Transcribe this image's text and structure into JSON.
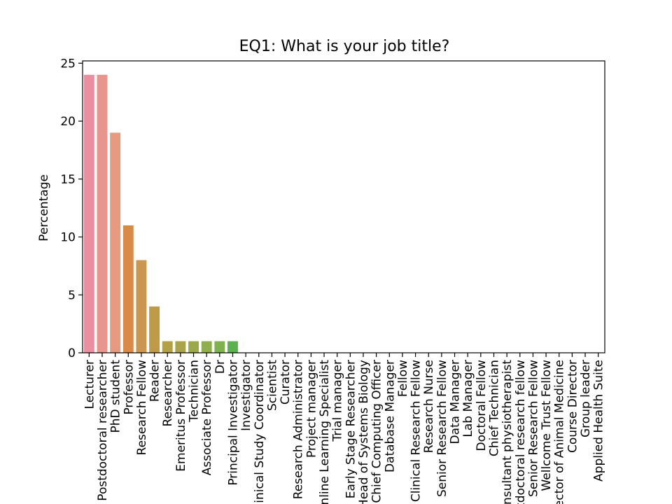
{
  "chart_data": {
    "type": "bar",
    "title": "EQ1: What is your job title?",
    "xlabel": "",
    "ylabel": "Percentage",
    "ylim": [
      0,
      25.2
    ],
    "yticks": [
      0,
      5,
      10,
      15,
      20,
      25
    ],
    "grid": false,
    "categories": [
      "Lecturer",
      "Postdoctoral researcher",
      "PhD student",
      "Professor",
      "Research Fellow",
      "Reader",
      "Researcher",
      "Emeritus Professor",
      "Technician",
      "Associate Professor",
      "Dr",
      "Principal Investigator",
      "Investigator",
      "Clinical Study Coordinator",
      "Scientist",
      "Curator",
      "Research Administrator",
      "Project manager",
      "Online Learning Specialist",
      "Trial manager",
      "Early Stage Researcher",
      "Head of Systems Biology",
      "Chief Computing Officer",
      "Database Manager",
      "Fellow",
      "Clinical Research Fellow",
      "Research Nurse",
      "Senior Research Fellow",
      "Data Manager",
      "Lab Manager",
      "Doctoral Fellow",
      "Chief Technician",
      "Consultant physiotherapist",
      "Postdoctoral research fellow",
      "Senior Research Fellow",
      "Wellcome Trust Fellow",
      "Director of Animal Medicine",
      "Course Director",
      "Group leader",
      "Applied Health Suite"
    ],
    "values": [
      24,
      24,
      19,
      11,
      8,
      4,
      1,
      1,
      1,
      1,
      1,
      1,
      0,
      0,
      0,
      0,
      0,
      0,
      0,
      0,
      0,
      0,
      0,
      0,
      0,
      0,
      0,
      0,
      0,
      0,
      0,
      0,
      0,
      0,
      0,
      0,
      0,
      0,
      0,
      0
    ],
    "colors": [
      "#e98fa0",
      "#e8958e",
      "#e69a7f",
      "#d98a48",
      "#cb9750",
      "#bf9a48",
      "#b3a148",
      "#a9a349",
      "#9da84b",
      "#8fae4c",
      "#7db24f",
      "#5cb14f"
    ]
  }
}
